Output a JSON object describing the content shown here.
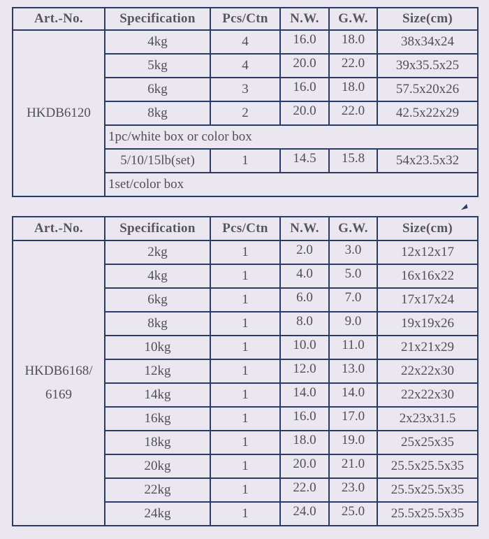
{
  "tables": [
    {
      "headers": [
        "Art.-No.",
        "Specification",
        "Pcs/Ctn",
        "N.W.",
        "G.W.",
        "Size(cm)"
      ],
      "art_no": "HKDB6120",
      "sections": [
        {
          "rows": [
            [
              "4kg",
              "4",
              "16.0",
              "18.0",
              "38x34x24"
            ],
            [
              "5kg",
              "4",
              "20.0",
              "22.0",
              "39x35.5x25"
            ],
            [
              "6kg",
              "3",
              "16.0",
              "18.0",
              "57.5x20x26"
            ],
            [
              "8kg",
              "2",
              "20.0",
              "22.0",
              "42.5x22x29"
            ]
          ],
          "note": "1pc/white box or color box"
        },
        {
          "rows": [
            [
              "5/10/15lb(set)",
              "1",
              "14.5",
              "15.8",
              "54x23.5x32"
            ]
          ],
          "note": "1set/color box"
        }
      ]
    },
    {
      "headers": [
        "Art.-No.",
        "Specification",
        "Pcs/Ctn",
        "N.W.",
        "G.W.",
        "Size(cm)"
      ],
      "art_no": "HKDB6168/ 6169",
      "sections": [
        {
          "rows": [
            [
              "2kg",
              "1",
              "2.0",
              "3.0",
              "12x12x17"
            ],
            [
              "4kg",
              "1",
              "4.0",
              "5.0",
              "16x16x22"
            ],
            [
              "6kg",
              "1",
              "6.0",
              "7.0",
              "17x17x24"
            ],
            [
              "8kg",
              "1",
              "8.0",
              "9.0",
              "19x19x26"
            ],
            [
              "10kg",
              "1",
              "10.0",
              "11.0",
              "21x21x29"
            ],
            [
              "12kg",
              "1",
              "12.0",
              "13.0",
              "22x22x30"
            ],
            [
              "14kg",
              "1",
              "14.0",
              "14.0",
              "22x22x30"
            ],
            [
              "16kg",
              "1",
              "16.0",
              "17.0",
              "2x23x31.5"
            ],
            [
              "18kg",
              "1",
              "18.0",
              "19.0",
              "25x25x35"
            ],
            [
              "20kg",
              "1",
              "20.0",
              "21.0",
              "25.5x25.5x35"
            ],
            [
              "22kg",
              "1",
              "22.0",
              "23.0",
              "25.5x25.5x35"
            ],
            [
              "24kg",
              "1",
              "24.0",
              "25.0",
              "25.5x25.5x35"
            ]
          ]
        }
      ]
    }
  ]
}
